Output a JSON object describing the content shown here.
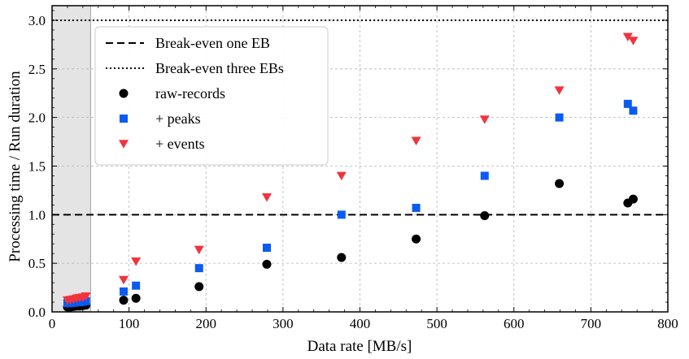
{
  "chart_data": {
    "type": "scatter",
    "title": "",
    "xlabel": "Data rate [MB/s]",
    "ylabel": "Processing time / Run duration",
    "xlim": [
      0,
      800
    ],
    "ylim": [
      0,
      3.15
    ],
    "xticks": [
      0,
      100,
      200,
      300,
      400,
      500,
      600,
      700,
      800
    ],
    "yticks": [
      0.0,
      0.5,
      1.0,
      1.5,
      2.0,
      2.5,
      3.0
    ],
    "xtick_labels": [
      "0",
      "100",
      "200",
      "300",
      "400",
      "500",
      "600",
      "700",
      "800"
    ],
    "ytick_labels": [
      "0.0",
      "0.5",
      "1.0",
      "1.5",
      "2.0",
      "2.5",
      "3.0"
    ],
    "grid": true,
    "shaded_region": {
      "x_from": 0,
      "x_to": 50,
      "color": "#e4e4e4"
    },
    "reference_lines": [
      {
        "name": "Break-even one EB",
        "y": 1.0,
        "style": "dashed"
      },
      {
        "name": "Break-even three EBs",
        "y": 3.0,
        "style": "dotted"
      }
    ],
    "series": [
      {
        "name": "raw-records",
        "marker": "circle",
        "color": "#000000",
        "x": [
          20,
          24,
          28,
          32,
          36,
          40,
          44,
          93,
          109,
          191,
          279,
          376,
          473,
          562,
          659,
          748,
          755
        ],
        "y": [
          0.05,
          0.05,
          0.055,
          0.06,
          0.06,
          0.065,
          0.07,
          0.12,
          0.14,
          0.26,
          0.49,
          0.56,
          0.75,
          0.99,
          1.32,
          1.12,
          1.16
        ]
      },
      {
        "name": "+ peaks",
        "marker": "square",
        "color": "#0b5bf2",
        "x": [
          20,
          24,
          28,
          32,
          36,
          40,
          44,
          93,
          109,
          191,
          279,
          376,
          473,
          562,
          659,
          748,
          755
        ],
        "y": [
          0.09,
          0.09,
          0.095,
          0.1,
          0.1,
          0.105,
          0.11,
          0.21,
          0.27,
          0.45,
          0.66,
          1.0,
          1.07,
          1.4,
          2.0,
          2.14,
          2.07
        ]
      },
      {
        "name": "+ events",
        "marker": "triangle-down",
        "color": "#f2333d",
        "x": [
          20,
          24,
          28,
          32,
          36,
          40,
          44,
          93,
          109,
          191,
          279,
          376,
          473,
          562,
          659,
          748,
          755
        ],
        "y": [
          0.12,
          0.125,
          0.13,
          0.14,
          0.145,
          0.15,
          0.16,
          0.33,
          0.52,
          0.64,
          1.18,
          1.4,
          1.76,
          1.98,
          2.28,
          2.83,
          2.79
        ]
      }
    ],
    "legend": {
      "location": "top-left"
    }
  }
}
